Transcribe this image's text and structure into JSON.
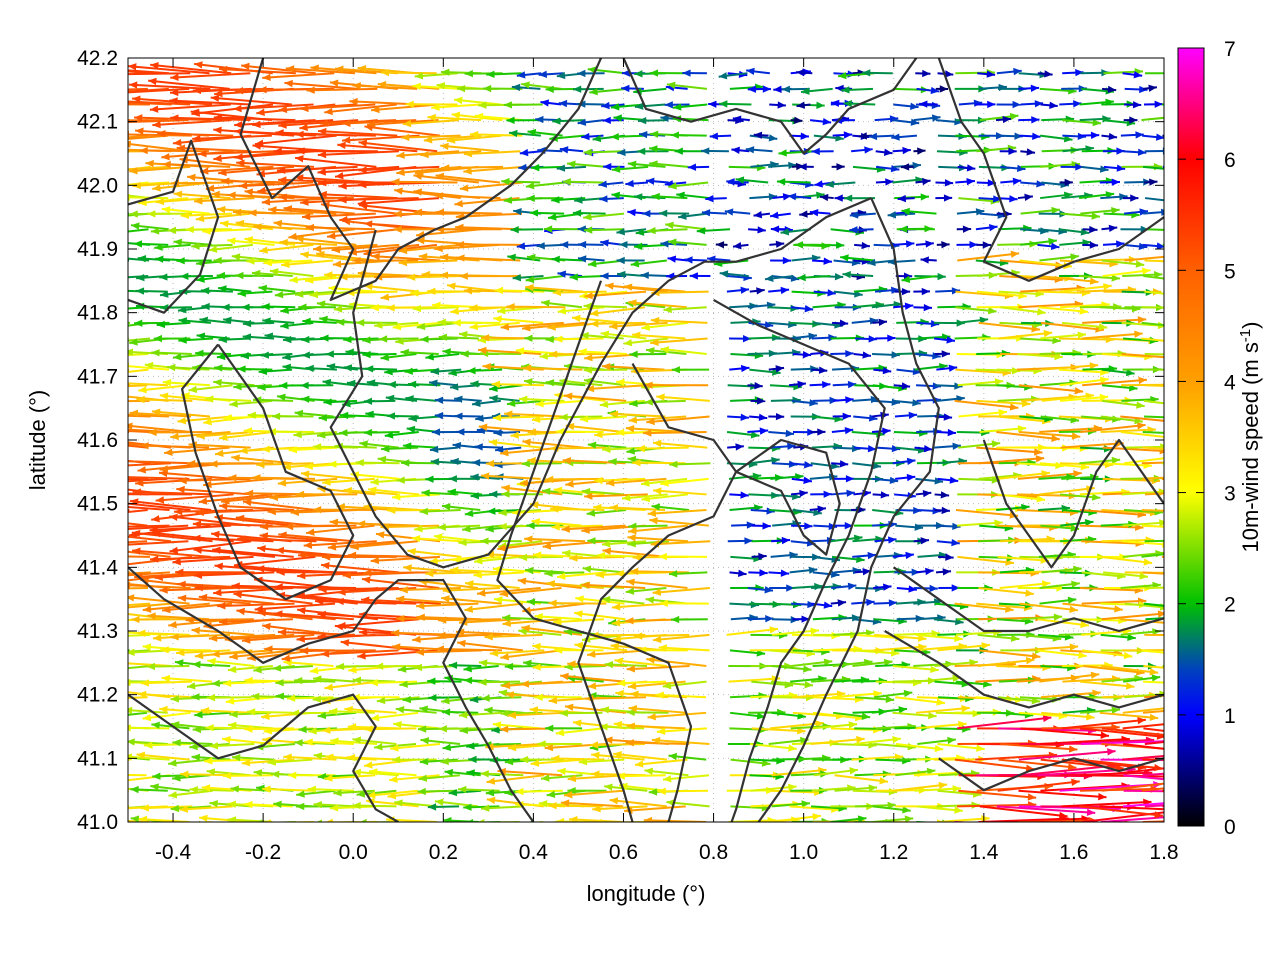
{
  "chart_data": {
    "type": "vector-field",
    "xlabel": "longitude (°)",
    "ylabel": "latitude (°)",
    "xlim": [
      -0.5,
      1.8
    ],
    "ylim": [
      41.0,
      42.2
    ],
    "xticks": [
      "-0.4",
      "-0.2",
      "0.0",
      "0.2",
      "0.4",
      "0.6",
      "0.8",
      "1.0",
      "1.2",
      "1.4",
      "1.6",
      "1.8"
    ],
    "xtick_values": [
      -0.4,
      -0.2,
      0.0,
      0.2,
      0.4,
      0.6,
      0.8,
      1.0,
      1.2,
      1.4,
      1.6,
      1.8
    ],
    "yticks": [
      "41.0",
      "41.1",
      "41.2",
      "41.3",
      "41.4",
      "41.5",
      "41.6",
      "41.7",
      "41.8",
      "41.9",
      "42.0",
      "42.1",
      "42.2"
    ],
    "ytick_values": [
      41.0,
      41.1,
      41.2,
      41.3,
      41.4,
      41.5,
      41.6,
      41.7,
      41.8,
      41.9,
      42.0,
      42.1,
      42.2
    ],
    "grid": true,
    "colorbar": {
      "label": "10m-wind speed (m s-1)",
      "label_base": "10m-wind speed (m s",
      "label_sup": "-1",
      "label_close": ")",
      "range": [
        0,
        7
      ],
      "ticks": [
        "0",
        "1",
        "2",
        "3",
        "4",
        "5",
        "6",
        "7"
      ],
      "tick_values": [
        0,
        1,
        2,
        3,
        4,
        5,
        6,
        7
      ],
      "colors": [
        "#000000",
        "#0000ff",
        "#00c000",
        "#ffff00",
        "#ffa000",
        "#ff0000",
        "#ff00ff"
      ]
    },
    "wind_regions": [
      {
        "region": "west (lon -0.5 to 0.4)",
        "direction": "westward",
        "speed_range": [
          2,
          6
        ]
      },
      {
        "region": "center-north (lon 0.4 to 1.3, lat 41.6 to 42.2)",
        "direction": "variable",
        "speed_range": [
          0,
          2.5
        ]
      },
      {
        "region": "center (lon 0.8 to 1.3, lat 41.3 to 41.7)",
        "direction": "eastward",
        "speed_range": [
          0.5,
          2
        ]
      },
      {
        "region": "east (lon 1.3 to 1.8)",
        "direction": "eastward",
        "speed_range": [
          1.5,
          5
        ]
      },
      {
        "region": "southeast (lon 1.3 to 1.8, lat 41.0 to 41.15)",
        "direction": "eastward",
        "speed_range": [
          5,
          7
        ]
      }
    ],
    "contours": "terrain elevation isolines (dark gray)"
  }
}
